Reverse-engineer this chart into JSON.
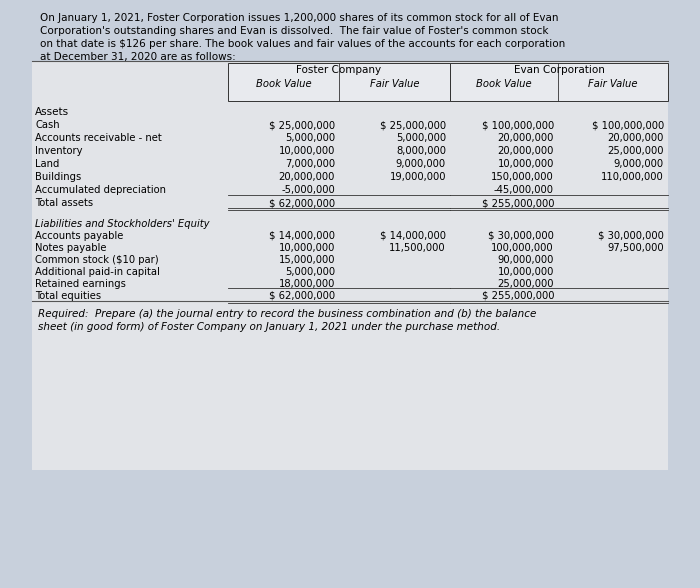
{
  "background_color": "#c8d0dc",
  "table_bg": "#e8e8e8",
  "intro_text_lines": [
    "On January 1, 2021, Foster Corporation issues 1,200,000 shares of its common stock for all of Evan",
    "Corporation's outstanding shares and Evan is dissolved.  The fair value of Foster's common stock",
    "on that date is $126 per share. The book values and fair values of the accounts for each corporation",
    "at December 31, 2020 are as follows:"
  ],
  "foster_header": "Foster Company",
  "evan_header": "Evan Corporation",
  "col_headers": [
    "Book Value",
    "Fair Value",
    "Book Value",
    "Fair Value"
  ],
  "section_assets": "Assets",
  "asset_rows": [
    {
      "label": "Cash",
      "f_bv": "$ 25,000,000",
      "f_fv": "$ 25,000,000",
      "e_bv": "$ 100,000,000",
      "e_fv": "$ 100,000,000"
    },
    {
      "label": "Accounts receivable - net",
      "f_bv": "5,000,000",
      "f_fv": "5,000,000",
      "e_bv": "20,000,000",
      "e_fv": "20,000,000"
    },
    {
      "label": "Inventory",
      "f_bv": "10,000,000",
      "f_fv": "8,000,000",
      "e_bv": "20,000,000",
      "e_fv": "25,000,000"
    },
    {
      "label": "Land",
      "f_bv": "7,000,000",
      "f_fv": "9,000,000",
      "e_bv": "10,000,000",
      "e_fv": "9,000,000"
    },
    {
      "label": "Buildings",
      "f_bv": "20,000,000",
      "f_fv": "19,000,000",
      "e_bv": "150,000,000",
      "e_fv": "110,000,000"
    },
    {
      "label": "Accumulated depreciation",
      "f_bv": "-5,000,000",
      "f_fv": "",
      "e_bv": "-45,000,000",
      "e_fv": ""
    },
    {
      "label": "Total assets",
      "f_bv": "$ 62,000,000",
      "f_fv": "",
      "e_bv": "$ 255,000,000",
      "e_fv": ""
    }
  ],
  "section_liabilities": "Liabilities and Stockholders' Equity",
  "liability_rows": [
    {
      "label": "Accounts payable",
      "f_bv": "$ 14,000,000",
      "f_fv": "$ 14,000,000",
      "e_bv": "$ 30,000,000",
      "e_fv": "$ 30,000,000"
    },
    {
      "label": "Notes payable",
      "f_bv": "10,000,000",
      "f_fv": "11,500,000",
      "e_bv": "100,000,000",
      "e_fv": "97,500,000"
    },
    {
      "label": "Common stock ($10 par)",
      "f_bv": "15,000,000",
      "f_fv": "",
      "e_bv": "90,000,000",
      "e_fv": ""
    },
    {
      "label": "Additional paid-in capital",
      "f_bv": "5,000,000",
      "f_fv": "",
      "e_bv": "10,000,000",
      "e_fv": ""
    },
    {
      "label": "Retained earnings",
      "f_bv": "18,000,000",
      "f_fv": "",
      "e_bv": "25,000,000",
      "e_fv": ""
    },
    {
      "label": "Total equities",
      "f_bv": "$ 62,000,000",
      "f_fv": "",
      "e_bv": "$ 255,000,000",
      "e_fv": ""
    }
  ],
  "required_text_lines": [
    "Required:  Prepare (a) the journal entry to record the business combination and (b) the balance",
    "sheet (in good form) of Foster Company on January 1, 2021 under the purchase method."
  ]
}
